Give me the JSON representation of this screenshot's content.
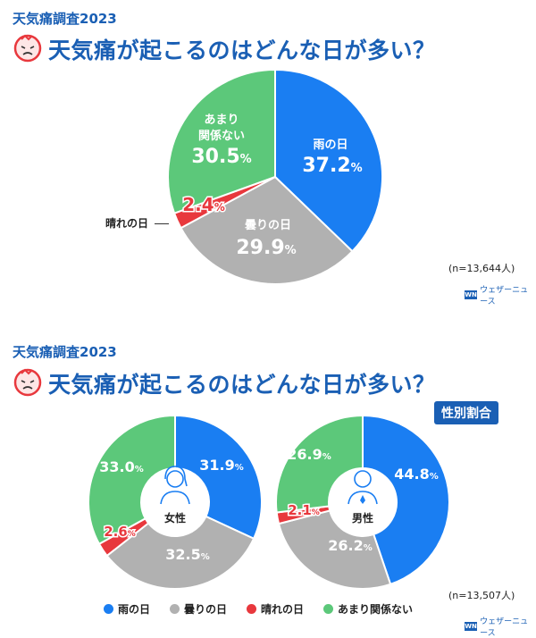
{
  "section1": {
    "kicker": "天気痛調査2023",
    "title": "天気痛が起こるのはどんな日が多い？",
    "n_note": "(n=13,644人)",
    "brand": "ウェザーニュース",
    "labels": {
      "rain_name": "雨の日",
      "cloudy_name": "曇りの日",
      "sunny_name": "晴れの日",
      "none_name_1": "あまり",
      "none_name_2": "関係ない"
    }
  },
  "section2": {
    "kicker": "天気痛調査2023",
    "title": "天気痛が起こるのはどんな日が多い？",
    "badge": "性別割合",
    "female_label": "女性",
    "male_label": "男性",
    "n_note": "(n=13,507人)",
    "brand": "ウェザーニュース",
    "legend": [
      "雨の日",
      "曇りの日",
      "晴れの日",
      "あまり関係ない"
    ]
  },
  "colors": {
    "rain": "#1a7ef2",
    "cloudy": "#b1b1b1",
    "sunny": "#e8383d",
    "none": "#5cc87a",
    "accent": "#1a5fb4"
  },
  "chart_data": [
    {
      "type": "pie",
      "title": "天気痛が起こるのはどんな日が多い？",
      "categories": [
        "雨の日",
        "曇りの日",
        "晴れの日",
        "あまり関係ない"
      ],
      "values": [
        37.2,
        29.9,
        2.4,
        30.5
      ],
      "value_labels": [
        "37.2%",
        "29.9%",
        "2.4%",
        "30.5%"
      ],
      "n": "(n=13,644人)"
    },
    {
      "type": "pie",
      "title": "女性",
      "categories": [
        "雨の日",
        "曇りの日",
        "晴れの日",
        "あまり関係ない"
      ],
      "values": [
        31.9,
        32.5,
        2.6,
        33.0
      ],
      "value_labels": [
        "31.9%",
        "32.5%",
        "2.6%",
        "33.0%"
      ]
    },
    {
      "type": "pie",
      "title": "男性",
      "categories": [
        "雨の日",
        "曇りの日",
        "晴れの日",
        "あまり関係ない"
      ],
      "values": [
        44.8,
        26.2,
        2.1,
        26.9
      ],
      "value_labels": [
        "44.8%",
        "26.2%",
        "2.1%",
        "26.9%"
      ],
      "n": "(n=13,507人)"
    }
  ]
}
